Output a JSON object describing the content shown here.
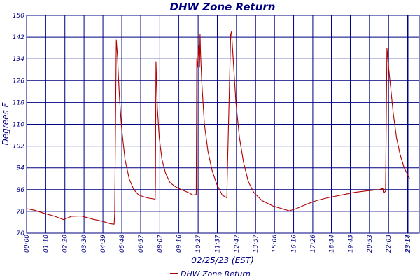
{
  "chart_data": {
    "type": "line",
    "title": "DHW Zone Return",
    "xlabel": "02/25/23 (EST)",
    "ylabel": "Degrees F",
    "ylim": [
      70,
      150
    ],
    "yticks": [
      70,
      78,
      86,
      94,
      102,
      110,
      118,
      126,
      134,
      142,
      150
    ],
    "xlim": [
      0,
      1435
    ],
    "xticks": [
      {
        "t": 0,
        "label": "00:00"
      },
      {
        "t": 70,
        "label": "01:10"
      },
      {
        "t": 140,
        "label": "02:20"
      },
      {
        "t": 210,
        "label": "03:30"
      },
      {
        "t": 279,
        "label": "04:39"
      },
      {
        "t": 348,
        "label": "05:48"
      },
      {
        "t": 417,
        "label": "06:57"
      },
      {
        "t": 487,
        "label": "08:07"
      },
      {
        "t": 556,
        "label": "09:16"
      },
      {
        "t": 627,
        "label": "10:27"
      },
      {
        "t": 697,
        "label": "11:37"
      },
      {
        "t": 767,
        "label": "12:47"
      },
      {
        "t": 837,
        "label": "13:57"
      },
      {
        "t": 906,
        "label": "15:06"
      },
      {
        "t": 976,
        "label": "16:16"
      },
      {
        "t": 1046,
        "label": "17:26"
      },
      {
        "t": 1114,
        "label": "18:34"
      },
      {
        "t": 1183,
        "label": "19:43"
      },
      {
        "t": 1253,
        "label": "20:53"
      },
      {
        "t": 1323,
        "label": "22:03"
      },
      {
        "t": 1392,
        "label": "23:12"
      },
      {
        "t": 1394,
        "label": "23:14"
      }
    ],
    "grid": true,
    "legend_position": "bottom",
    "series": [
      {
        "name": "DHW Zone Return",
        "color": "#b00000",
        "points": [
          [
            0,
            79
          ],
          [
            30,
            78.4
          ],
          [
            60,
            77.4
          ],
          [
            100,
            76.3
          ],
          [
            135,
            75
          ],
          [
            140,
            75.2
          ],
          [
            165,
            76.2
          ],
          [
            200,
            76.3
          ],
          [
            240,
            75.2
          ],
          [
            280,
            74.3
          ],
          [
            305,
            73.5
          ],
          [
            320,
            73.3
          ],
          [
            322,
            77
          ],
          [
            328,
            141
          ],
          [
            333,
            134
          ],
          [
            334,
            131
          ],
          [
            340,
            119
          ],
          [
            348,
            108
          ],
          [
            360,
            97
          ],
          [
            375,
            90
          ],
          [
            392,
            86
          ],
          [
            410,
            84
          ],
          [
            440,
            83
          ],
          [
            470,
            82.5
          ],
          [
            471,
            88
          ],
          [
            473,
            133
          ],
          [
            478,
            116
          ],
          [
            485,
            105
          ],
          [
            495,
            97
          ],
          [
            508,
            92
          ],
          [
            525,
            88.5
          ],
          [
            545,
            87
          ],
          [
            565,
            86
          ],
          [
            590,
            85
          ],
          [
            608,
            84
          ],
          [
            620,
            84.2
          ],
          [
            622,
            134
          ],
          [
            625,
            131
          ],
          [
            629,
            139
          ],
          [
            632,
            131
          ],
          [
            634,
            143
          ],
          [
            636,
            136
          ],
          [
            640,
            126
          ],
          [
            650,
            110
          ],
          [
            663,
            100
          ],
          [
            678,
            93
          ],
          [
            695,
            88
          ],
          [
            715,
            84
          ],
          [
            732,
            83
          ],
          [
            733,
            89
          ],
          [
            746,
            143
          ],
          [
            749,
            144
          ],
          [
            755,
            134
          ],
          [
            765,
            118
          ],
          [
            778,
            105
          ],
          [
            793,
            96
          ],
          [
            810,
            89
          ],
          [
            830,
            85
          ],
          [
            860,
            82
          ],
          [
            900,
            80
          ],
          [
            940,
            78.8
          ],
          [
            960,
            78.2
          ],
          [
            985,
            79
          ],
          [
            1020,
            80.5
          ],
          [
            1060,
            82
          ],
          [
            1100,
            83
          ],
          [
            1150,
            84
          ],
          [
            1200,
            85
          ],
          [
            1240,
            85.5
          ],
          [
            1290,
            86
          ],
          [
            1302,
            86.5
          ],
          [
            1304,
            85
          ],
          [
            1306,
            84.8
          ],
          [
            1312,
            85.5
          ],
          [
            1317,
            138
          ],
          [
            1322,
            132
          ],
          [
            1330,
            124
          ],
          [
            1340,
            114
          ],
          [
            1352,
            105
          ],
          [
            1365,
            99
          ],
          [
            1380,
            94
          ],
          [
            1395,
            91
          ],
          [
            1400,
            90
          ]
        ]
      }
    ]
  }
}
